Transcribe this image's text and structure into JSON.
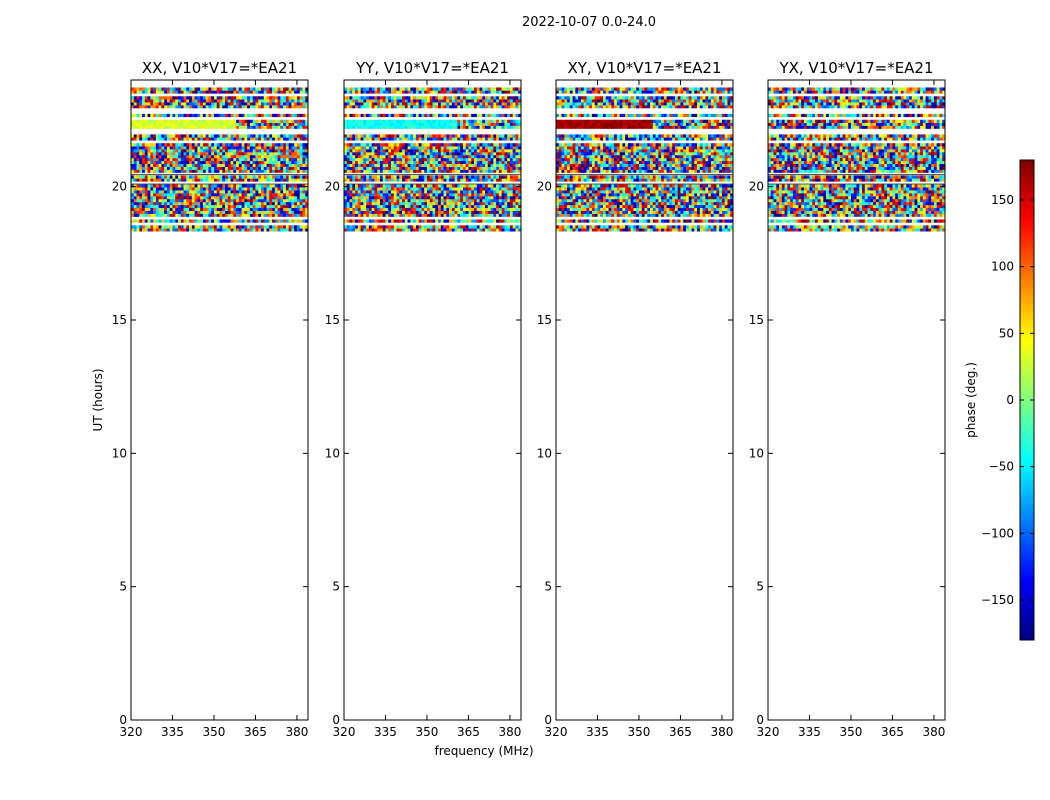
{
  "chart_data": {
    "type": "heatmap",
    "suptitle": "2022-10-07 0.0-24.0",
    "xlabel": "frequency (MHz)",
    "ylabel": "UT (hours)",
    "xlim": [
      320,
      384
    ],
    "ylim": [
      0,
      24
    ],
    "xticks": [
      320,
      335,
      350,
      365,
      380
    ],
    "yticks": [
      0,
      5,
      10,
      15,
      20
    ],
    "data_time_range_hours": [
      18,
      23.7
    ],
    "flagged_hours": [
      18.05,
      18.2,
      18.55,
      18.75,
      20.1,
      20.45,
      21.6,
      21.95,
      22.1,
      22.55,
      22.75,
      22.85,
      23.4,
      23.7
    ],
    "panels": [
      {
        "title": "XX, V10*V17=*EA21",
        "band_hours": [
          21.95,
          22.55
        ],
        "band_phase_deg": 30,
        "band_freq_end_mhz": 358
      },
      {
        "title": "YY, V10*V17=*EA21",
        "band_hours": [
          21.95,
          22.55
        ],
        "band_phase_deg": -40,
        "band_freq_end_mhz": 361
      },
      {
        "title": "XY, V10*V17=*EA21",
        "band_hours": [
          21.95,
          22.55
        ],
        "band_phase_deg": 170,
        "band_freq_end_mhz": 355
      },
      {
        "title": "YX, V10*V17=*EA21",
        "band_hours": null,
        "band_phase_deg": null,
        "band_freq_end_mhz": null
      }
    ],
    "colorbar": {
      "label": "phase (deg.)",
      "range": [
        -180,
        180
      ],
      "ticks": [
        -150,
        -100,
        -50,
        0,
        50,
        100,
        150
      ],
      "tick_labels": [
        "−150",
        "−100",
        "−50",
        "0",
        "50",
        "100",
        "150"
      ],
      "colormap": "jet"
    }
  }
}
